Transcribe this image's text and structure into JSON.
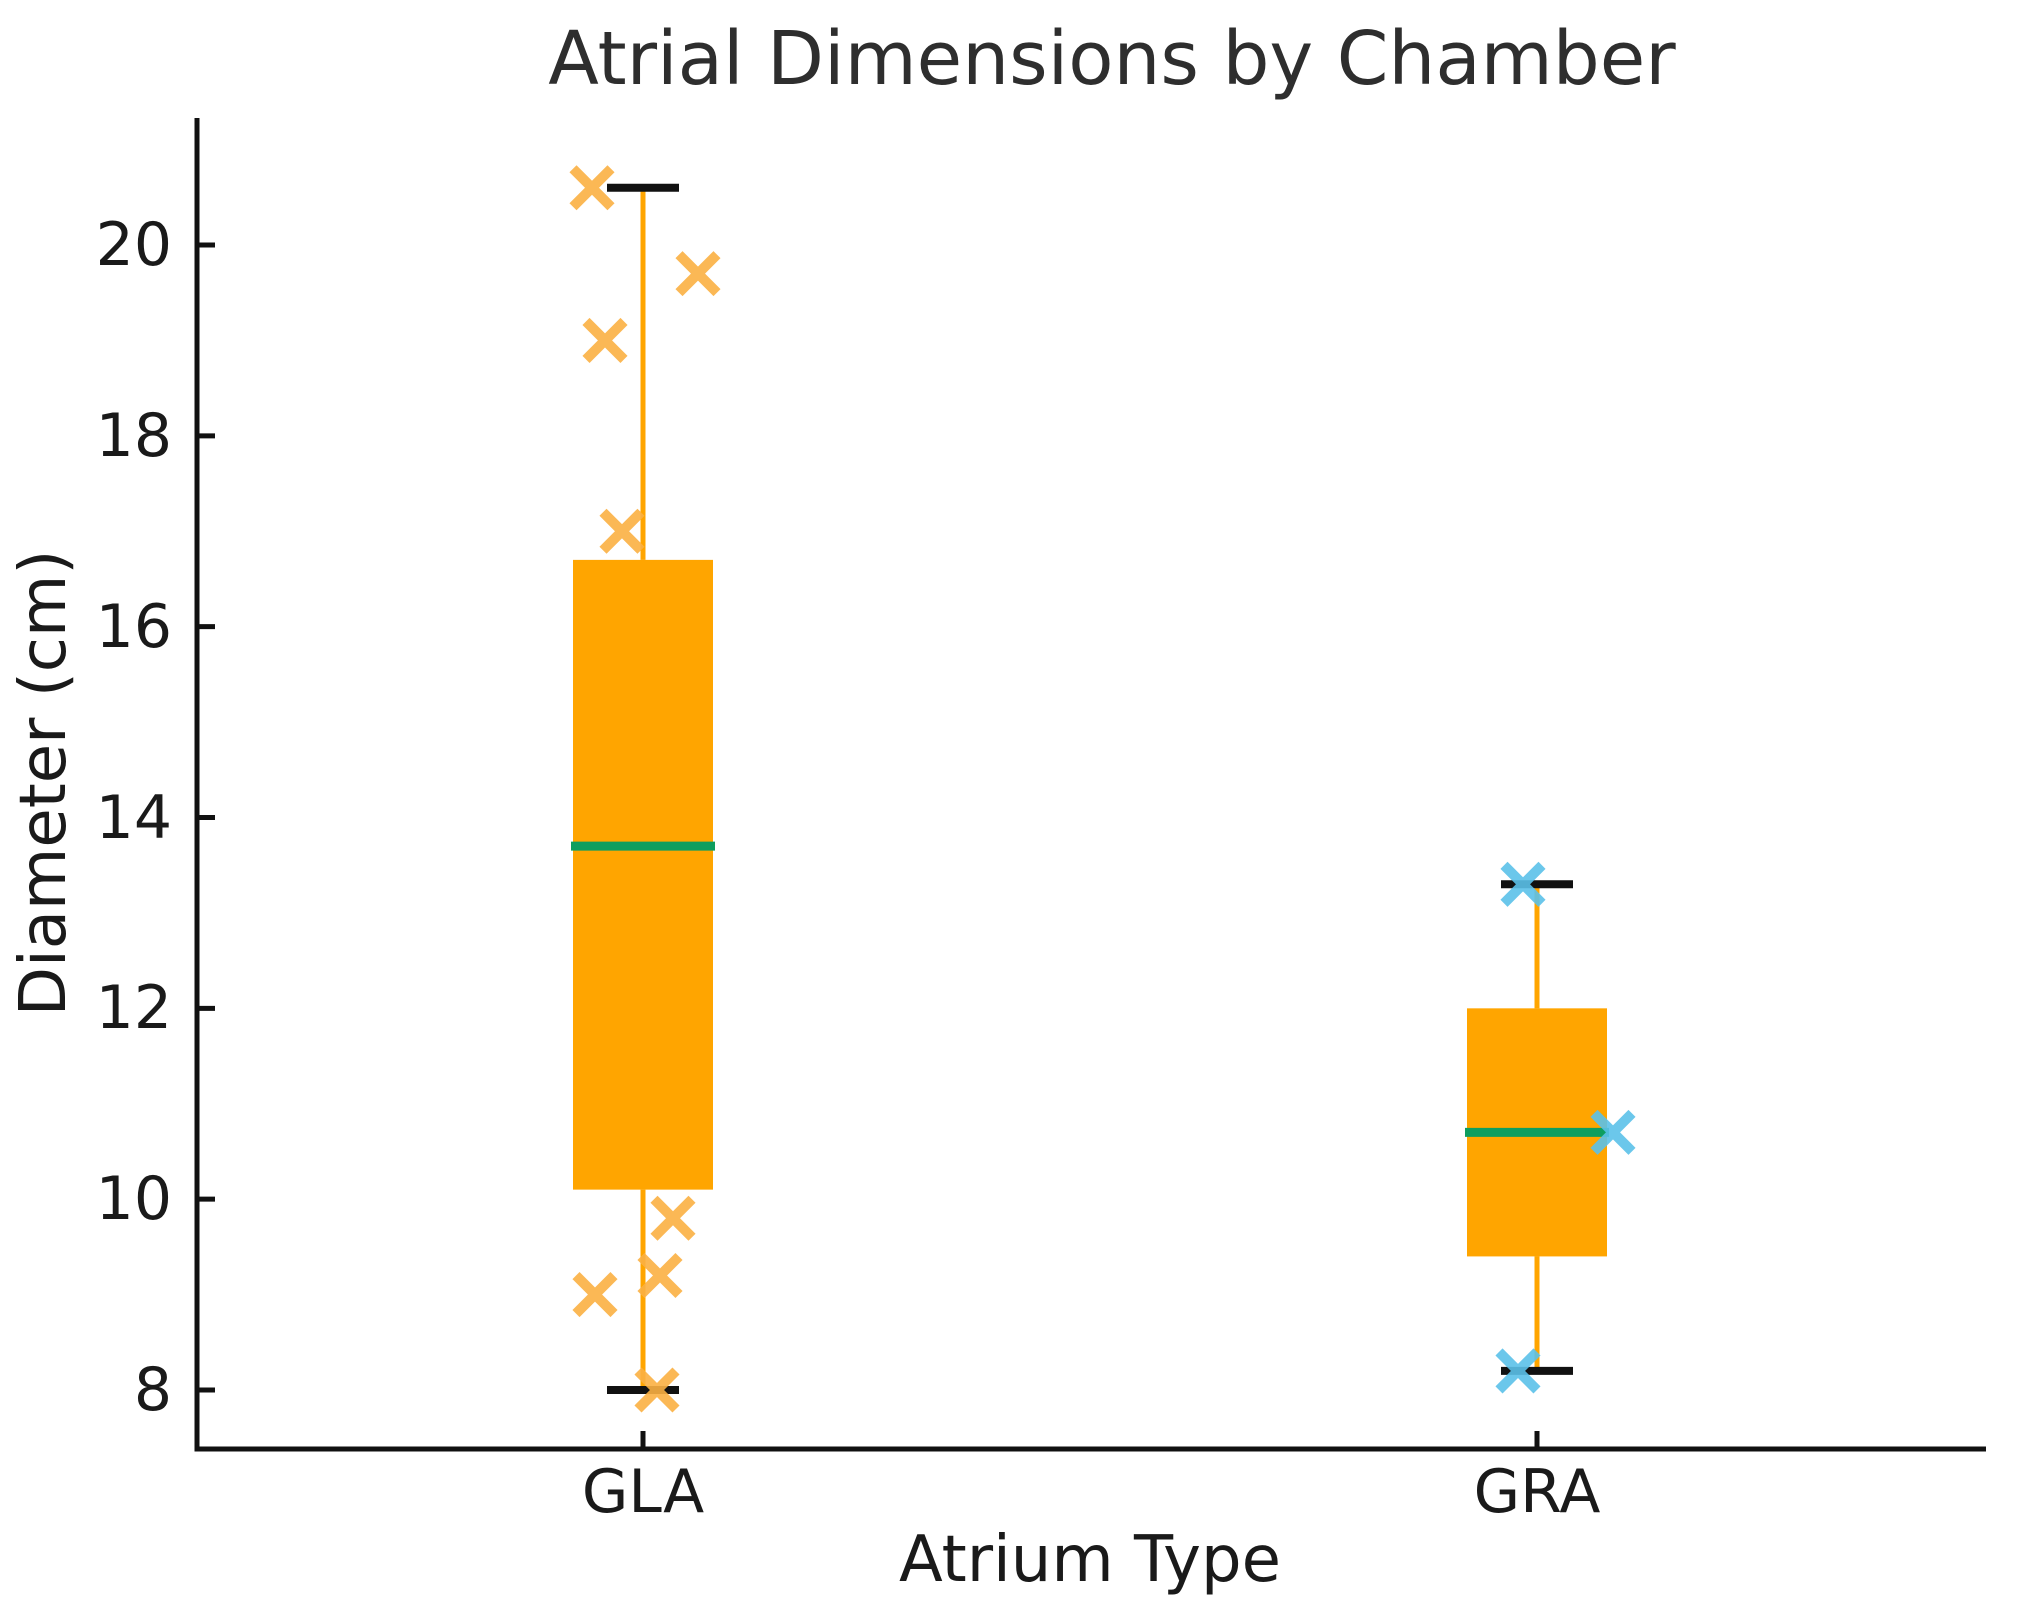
{
  "title": "Atrial Dimensions by Chamber",
  "chart_data": {
    "type": "box",
    "title": "Atrial Dimensions by Chamber",
    "xlabel": "Atrium Type",
    "ylabel": "Diameter (cm)",
    "categories": [
      "GLA",
      "GRA"
    ],
    "yticks": [
      20,
      18,
      16,
      14,
      12,
      10,
      8
    ],
    "ylim": [
      7.4,
      21.3
    ],
    "grid": false,
    "legend": "none",
    "colors": {
      "box_fill": "#FFA500",
      "whisker": "#FFA500",
      "cap": "#111111",
      "median": "#0E9E5F",
      "axis": "#111111",
      "gla_points": "#FBB042",
      "gra_points": "#5BC1E9"
    },
    "series": [
      {
        "name": "GLA",
        "whisker_low": 8.0,
        "q1": 10.1,
        "median": 13.7,
        "q3": 16.7,
        "whisker_high": 20.6,
        "point_color": "#FBB042",
        "points": [
          {
            "value": 20.6,
            "dx": -51
          },
          {
            "value": 19.7,
            "dx": 55
          },
          {
            "value": 19.0,
            "dx": -38
          },
          {
            "value": 17.0,
            "dx": -21
          },
          {
            "value": 9.8,
            "dx": 30
          },
          {
            "value": 9.2,
            "dx": 17
          },
          {
            "value": 9.0,
            "dx": -48
          },
          {
            "value": 8.0,
            "dx": 14
          }
        ]
      },
      {
        "name": "GRA",
        "whisker_low": 8.2,
        "q1": 9.4,
        "median": 10.7,
        "q3": 12.0,
        "whisker_high": 13.3,
        "point_color": "#5BC1E9",
        "points": [
          {
            "value": 13.3,
            "dx": -14
          },
          {
            "value": 10.7,
            "dx": 76
          },
          {
            "value": 8.2,
            "dx": -19
          }
        ]
      }
    ]
  }
}
